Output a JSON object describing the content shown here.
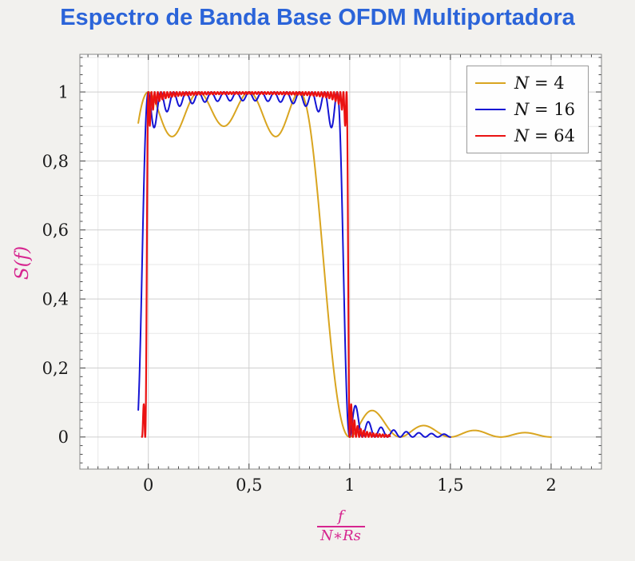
{
  "page": {
    "background": "#f2f1ee"
  },
  "title": {
    "text": "Espectro de Banda Base OFDM Multiportadora",
    "color": "#2b64d9"
  },
  "chart_data": {
    "type": "line",
    "title": "Espectro de Banda Base OFDM Multiportadora",
    "xlabel": "f/(N∗Rs)",
    "xlabel_numerator": "f",
    "xlabel_denominator": "N∗Rs",
    "ylabel": "S(f)",
    "axis_label_color": "#d6258f",
    "plot_bg": "#ffffff",
    "frame_color": "#878787",
    "grid_major_color": "#cfcfcf",
    "grid_minor_color": "#e7e7e7",
    "tick_color": "#333333",
    "tick_label_color": "#1b1b1b",
    "grid": "both",
    "legend_position": "top-right",
    "xlim": [
      -0.34,
      2.25
    ],
    "ylim": [
      -0.093,
      1.109
    ],
    "x_ticks": [
      {
        "value": 0,
        "label": "0"
      },
      {
        "value": 0.5,
        "label": "0,5"
      },
      {
        "value": 1,
        "label": "1"
      },
      {
        "value": 1.5,
        "label": "1,5"
      },
      {
        "value": 2,
        "label": "2"
      }
    ],
    "y_ticks": [
      {
        "value": 0,
        "label": "0"
      },
      {
        "value": 0.2,
        "label": "0,2"
      },
      {
        "value": 0.4,
        "label": "0,4"
      },
      {
        "value": 0.6,
        "label": "0,6"
      },
      {
        "value": 0.8,
        "label": "0,8"
      },
      {
        "value": 1,
        "label": "1"
      }
    ],
    "x_minor_grid_step": 0.25,
    "y_minor_grid_step": 0.1,
    "x_minor_tick_step": 0.05,
    "y_minor_tick_step": 0.025,
    "model": "S(x) = Σ_{k=0}^{N-1} sinc²(N·x − k),  sinc(t) = sin(πt)/(πt),  x = f/(N·Rs)",
    "series": [
      {
        "name": "N = 4",
        "legend_var": "N",
        "legend_rest": " = 4",
        "N": 4,
        "color": "#d9a520",
        "width": 2,
        "x_range": [
          -0.05,
          2.0
        ],
        "sample_step": 0.0025,
        "anchor_points": [
          [
            -0.05,
            0.91
          ],
          [
            0,
            1
          ],
          [
            0.125,
            0.871
          ],
          [
            0.25,
            1
          ],
          [
            0.375,
            0.9
          ],
          [
            0.5,
            1
          ],
          [
            0.625,
            0.871
          ],
          [
            0.75,
            1
          ],
          [
            0.875,
            0.475
          ],
          [
            1,
            0
          ],
          [
            1.125,
            0.075
          ],
          [
            1.25,
            0
          ],
          [
            1.375,
            0.033
          ],
          [
            1.5,
            0
          ],
          [
            1.625,
            0.019
          ],
          [
            1.75,
            0
          ],
          [
            1.875,
            0.013
          ],
          [
            2,
            0
          ]
        ]
      },
      {
        "name": "N = 16",
        "legend_var": "N",
        "legend_rest": " = 16",
        "N": 16,
        "color": "#1414d4",
        "width": 2,
        "x_range": [
          -0.05,
          1.5
        ],
        "sample_step": 0.001,
        "notable": "band edges at x=0 and x=1, edge ripple dips ≈0.90, interior ripple ≈0.97–1.0, small sidelobes (<0.08) decaying beyond x=1"
      },
      {
        "name": "N = 64",
        "legend_var": "N",
        "legend_rest": " = 64",
        "N": 64,
        "color": "#ea1212",
        "width": 2.2,
        "x_range": [
          -0.032,
          1.2
        ],
        "sample_step": 0.0005,
        "notable": "near-rectangular spectrum over 0≤x≤1, very small in-band ripple, steep roll-off at x≈1, tiny sidelobes to x≈1.1"
      }
    ]
  }
}
